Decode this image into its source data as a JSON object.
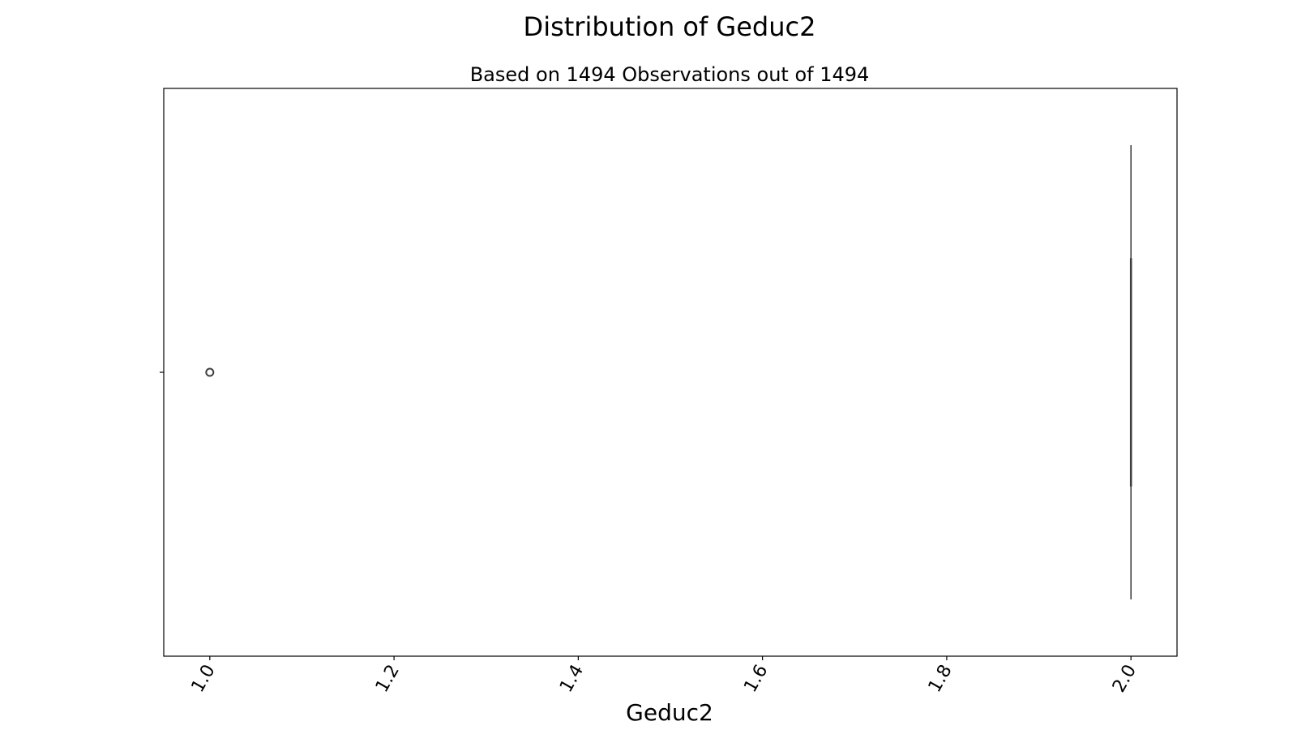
{
  "chart_data": {
    "type": "box",
    "orientation": "horizontal",
    "title": "Distribution of Geduc2",
    "subtitle": "Based on 1494 Observations out of 1494",
    "xlabel": "Geduc2",
    "ylabel": "",
    "xlim": [
      0.95,
      2.05
    ],
    "x_ticks": [
      1.0,
      1.2,
      1.4,
      1.6,
      1.8,
      2.0
    ],
    "x_tick_labels": [
      "1.0",
      "1.2",
      "1.4",
      "1.6",
      "1.8",
      "2.0"
    ],
    "x_tick_rotation_deg": -60,
    "grid": false,
    "legend": "none",
    "box": {
      "min": 2.0,
      "q1": 2.0,
      "median": 2.0,
      "q3": 2.0,
      "max": 2.0
    },
    "outliers": [
      1.0
    ],
    "colors": {
      "box_line": "#3f3f3f",
      "outlier_edge": "#3f3f3f",
      "axes": "#000000"
    }
  }
}
